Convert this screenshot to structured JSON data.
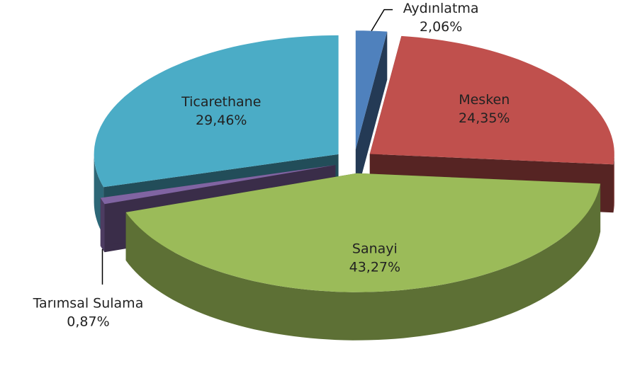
{
  "chart_data": {
    "type": "pie3d",
    "categories": [
      "Aydınlatma",
      "Mesken",
      "Sanayi",
      "Tarımsal Sulama",
      "Ticarethane"
    ],
    "values": [
      2.06,
      24.35,
      43.27,
      0.87,
      29.46
    ],
    "value_labels": [
      "2,06%",
      "24,35%",
      "43,27%",
      "0,87%",
      "29,46%"
    ],
    "colors": [
      "#4f81bd",
      "#c0504d",
      "#9bbb59",
      "#8064a2",
      "#4bacc6"
    ]
  }
}
